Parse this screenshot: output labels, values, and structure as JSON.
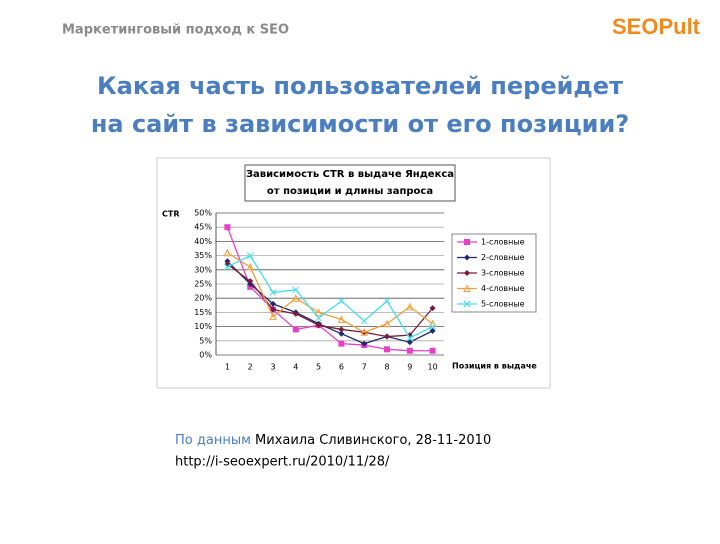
{
  "header": {
    "section": "Маркетинговый подход к SEO",
    "logo": "SEOPult"
  },
  "title": [
    "Какая часть пользователей перейдет",
    "на сайт в зависимости от его позиции?"
  ],
  "chart_data": {
    "type": "line",
    "title": [
      "Зависимость CTR в выдаче Яндекса",
      "от позиции и длины запроса"
    ],
    "y_label": "CTR",
    "x_label": "Позиция в выдаче",
    "categories": [
      "1",
      "2",
      "3",
      "4",
      "5",
      "6",
      "7",
      "8",
      "9",
      "10"
    ],
    "ylim": [
      0,
      50
    ],
    "yticks": [
      {
        "value": 0,
        "label": "0%"
      },
      {
        "value": 5,
        "label": "5%"
      },
      {
        "value": 10,
        "label": "10%"
      },
      {
        "value": 15,
        "label": "15%"
      },
      {
        "value": 20,
        "label": "20%"
      },
      {
        "value": 25,
        "label": "25%"
      },
      {
        "value": 30,
        "label": "30%"
      },
      {
        "value": 35,
        "label": "35%"
      },
      {
        "value": 40,
        "label": "40%"
      },
      {
        "value": 45,
        "label": "45%"
      },
      {
        "value": 50,
        "label": "50%"
      }
    ],
    "grid": true,
    "legend": "right",
    "series": [
      {
        "name": "1-словные",
        "color": "#e83fc8",
        "marker": "square",
        "values": [
          45,
          24,
          16,
          9,
          10.5,
          4,
          3.5,
          2,
          1.5,
          1.5
        ]
      },
      {
        "name": "2-словные",
        "color": "#1f2a6e",
        "marker": "diamond",
        "values": [
          33,
          25,
          18,
          15,
          11,
          7.5,
          4,
          6.5,
          4.5,
          8.5
        ]
      },
      {
        "name": "3-словные",
        "color": "#7a1a3a",
        "marker": "diamond",
        "values": [
          32,
          26,
          16,
          14.5,
          10.5,
          9,
          8,
          6.5,
          7,
          16.5
        ]
      },
      {
        "name": "4-словные",
        "color": "#f0a040",
        "marker": "triangle",
        "values": [
          36,
          31,
          13.5,
          20,
          15,
          12.5,
          8,
          11,
          17,
          11
        ]
      },
      {
        "name": "5-словные",
        "color": "#40dff0",
        "marker": "cross",
        "values": [
          31,
          35,
          22,
          23,
          13,
          19,
          12,
          19,
          6,
          10
        ]
      }
    ]
  },
  "source": {
    "lead": "По данным",
    "text": "Михаила Сливинского, 28-11-2010",
    "url": "http://i-seoexpert.ru/2010/11/28/"
  }
}
